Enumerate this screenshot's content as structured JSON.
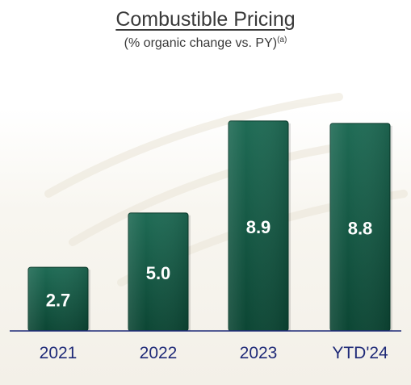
{
  "chart_data": {
    "type": "bar",
    "title": "Combustible Pricing",
    "subtitle": "(% organic change vs. PY)",
    "subtitle_note": "(a)",
    "categories": [
      "2021",
      "2022",
      "2023",
      "YTD'24"
    ],
    "values": [
      2.7,
      5.0,
      8.9,
      8.8
    ],
    "data_labels": [
      "2.7",
      "5.0",
      "8.9",
      "8.8"
    ],
    "xlabel": "",
    "ylabel": "",
    "ylim": [
      0,
      9.0
    ],
    "grid": false,
    "legend": "none",
    "colors": {
      "bar_top": "#1f6b55",
      "bar_bottom": "#0c4634",
      "bar_edge": "#0a3a2b",
      "data_label": "#ffffff",
      "category_label": "#1f2a78",
      "axis": "#1f2a78"
    }
  }
}
